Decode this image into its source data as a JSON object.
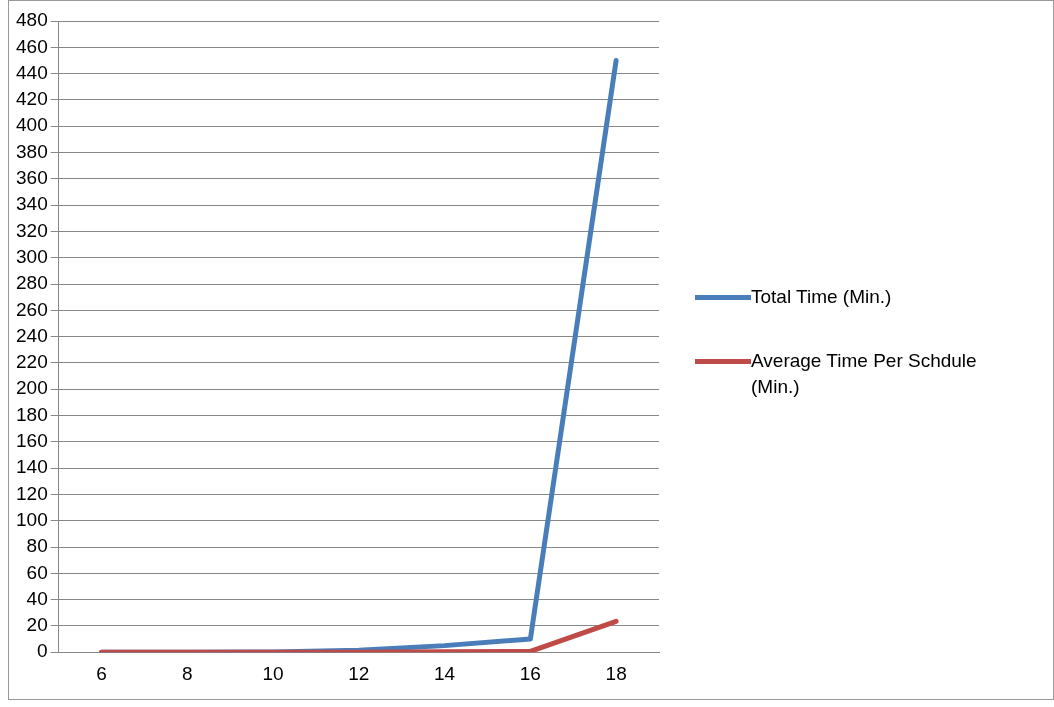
{
  "chart_data": {
    "type": "line",
    "categories": [
      "6",
      "8",
      "10",
      "12",
      "14",
      "16",
      "18"
    ],
    "series": [
      {
        "name": "Total Time (Min.)",
        "color": "#4a7ebb",
        "values": [
          0,
          0,
          0.2,
          1.5,
          5,
          10,
          450
        ]
      },
      {
        "name": "Average Time Per Schdule (Min.)",
        "color": "#be4b48",
        "values": [
          0,
          0,
          0,
          0,
          0.3,
          0.6,
          23.5
        ]
      }
    ],
    "ylim": [
      0,
      480
    ],
    "yticks": [
      0,
      20,
      40,
      60,
      80,
      100,
      120,
      140,
      160,
      180,
      200,
      220,
      240,
      260,
      280,
      300,
      320,
      340,
      360,
      380,
      400,
      420,
      440,
      460,
      480
    ],
    "grid": "y",
    "legend": "right",
    "marker": "none",
    "line_style": "solid"
  }
}
